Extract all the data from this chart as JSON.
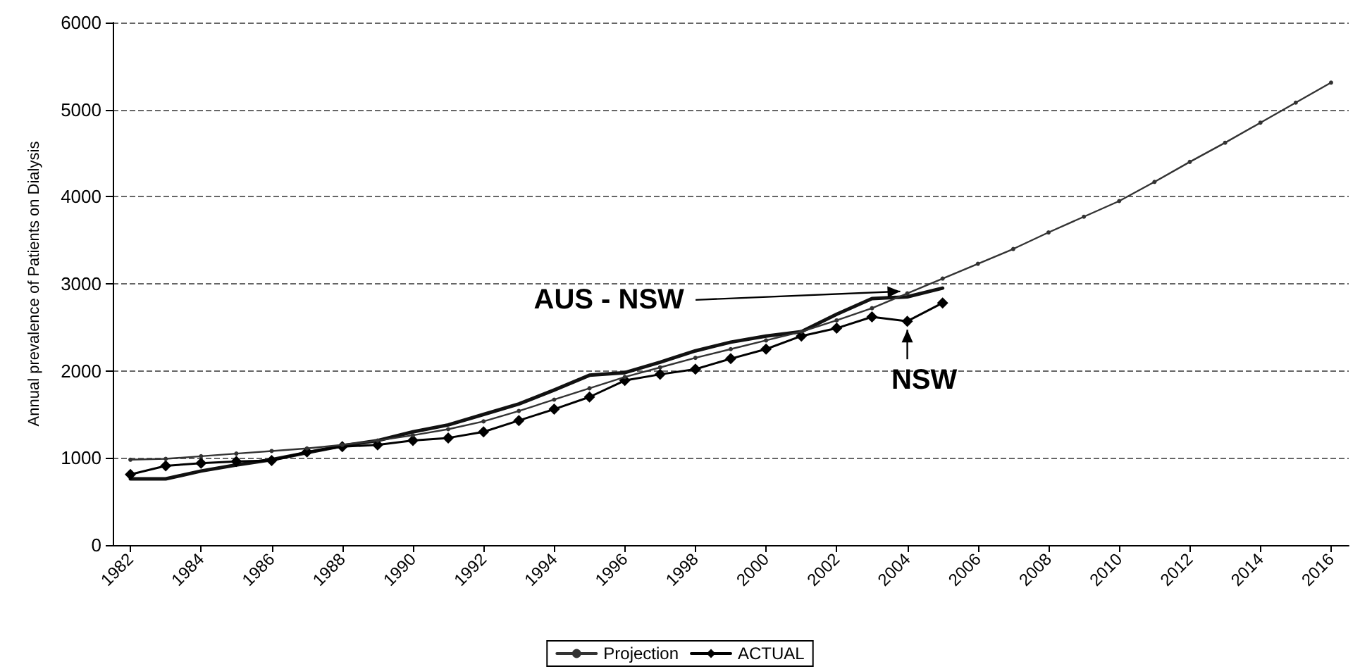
{
  "chart_data": {
    "type": "line",
    "ylabel": "Annual prevalence of Patients on Dialysis",
    "xlim": [
      1981.5,
      2016.5
    ],
    "xticks": [
      1982,
      1984,
      1986,
      1988,
      1990,
      1992,
      1994,
      1996,
      1998,
      2000,
      2002,
      2004,
      2006,
      2008,
      2010,
      2012,
      2014,
      2016
    ],
    "ylim": [
      0,
      6000
    ],
    "yticks": [
      0,
      1000,
      2000,
      3000,
      4000,
      5000,
      6000
    ],
    "grid": "y",
    "legend": "bottom",
    "series": [
      {
        "name": "Projection",
        "color": "#333333",
        "marker": "circle",
        "x": [
          1982,
          1983,
          1984,
          1985,
          1986,
          1987,
          1988,
          1989,
          1990,
          1991,
          1992,
          1993,
          1994,
          1995,
          1996,
          1997,
          1998,
          1999,
          2000,
          2001,
          2002,
          2003,
          2004,
          2005,
          2006,
          2007,
          2008,
          2009,
          2010,
          2011,
          2012,
          2013,
          2014,
          2015,
          2016
        ],
        "values": [
          980,
          990,
          1020,
          1050,
          1080,
          1110,
          1150,
          1200,
          1260,
          1330,
          1420,
          1540,
          1670,
          1800,
          1930,
          2040,
          2150,
          2250,
          2350,
          2450,
          2580,
          2720,
          2890,
          3060,
          3230,
          3400,
          3590,
          3770,
          3950,
          4170,
          4400,
          4620,
          4850,
          5080,
          5310
        ]
      },
      {
        "name": "ACTUAL",
        "color": "#000000",
        "marker": "diamond",
        "x": [
          1982,
          1983,
          1984,
          1985,
          1986,
          1987,
          1988,
          1989,
          1990,
          1991,
          1992,
          1993,
          1994,
          1995,
          1996,
          1997,
          1998,
          1999,
          2000,
          2001,
          2002,
          2003,
          2004,
          2005
        ],
        "values": [
          810,
          910,
          940,
          960,
          970,
          1070,
          1130,
          1150,
          1200,
          1230,
          1300,
          1430,
          1560,
          1700,
          1890,
          1960,
          2020,
          2140,
          2250,
          2400,
          2490,
          2620,
          2570,
          2780
        ]
      },
      {
        "color": "#111111",
        "marker": "none",
        "x": [
          1982,
          1983,
          1984,
          1985,
          1986,
          1987,
          1988,
          1989,
          1990,
          1991,
          1992,
          1993,
          1994,
          1995,
          1996,
          1997,
          1998,
          1999,
          2000,
          2001,
          2002,
          2003,
          2004,
          2005
        ],
        "values": [
          760,
          760,
          850,
          920,
          980,
          1060,
          1140,
          1200,
          1300,
          1380,
          1500,
          1620,
          1780,
          1950,
          1980,
          2100,
          2230,
          2330,
          2400,
          2450,
          2650,
          2830,
          2850,
          2950
        ]
      }
    ],
    "annotations": [
      {
        "text": "AUS - NSW",
        "x": 2003.8,
        "y": 2880
      },
      {
        "text": "NSW",
        "x": 2004,
        "y": 2570
      }
    ]
  }
}
